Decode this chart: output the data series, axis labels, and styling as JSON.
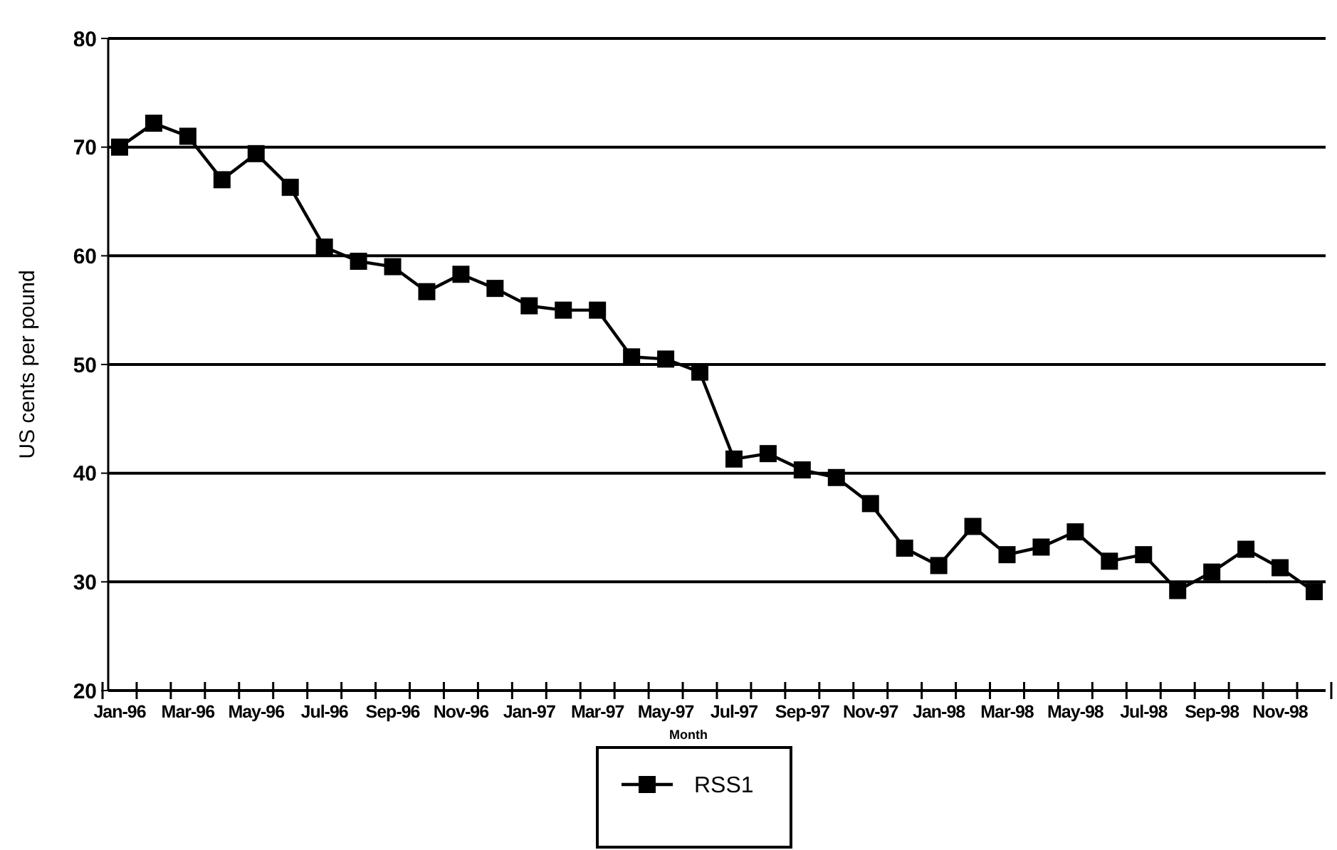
{
  "chart_data": {
    "type": "line",
    "xlabel": "Month",
    "ylabel": "US cents per pound",
    "categories": [
      "Jan-96",
      null,
      "Mar-96",
      null,
      "May-96",
      null,
      "Jul-96",
      null,
      "Sep-96",
      null,
      "Nov-96",
      null,
      "Jan-97",
      null,
      "Mar-97",
      null,
      "May-97",
      null,
      "Jul-97",
      null,
      "Sep-97",
      null,
      "Nov-97",
      null,
      "Jan-98",
      null,
      "Mar-98",
      null,
      "May-98",
      null,
      "Jul-98",
      null,
      "Sep-98",
      null,
      "Nov-98",
      null
    ],
    "series": [
      {
        "name": "RSS1",
        "color": "#000000",
        "values": [
          70,
          72.2,
          71,
          67,
          69.4,
          66.3,
          60.8,
          59.5,
          59,
          56.7,
          58.3,
          57,
          55.4,
          55,
          55,
          50.7,
          50.5,
          49.3,
          41.3,
          41.8,
          40.3,
          39.6,
          37.2,
          33.1,
          31.5,
          35.1,
          32.5,
          33.2,
          34.6,
          31.9,
          32.5,
          29.2,
          30.9,
          33,
          31.3,
          29.1
        ]
      }
    ],
    "ylim": [
      20,
      80
    ],
    "yticks": [
      20,
      30,
      40,
      50,
      60,
      70,
      80
    ],
    "grid": "y",
    "legend": "bottom",
    "marker": "square",
    "line_style": "solid"
  }
}
